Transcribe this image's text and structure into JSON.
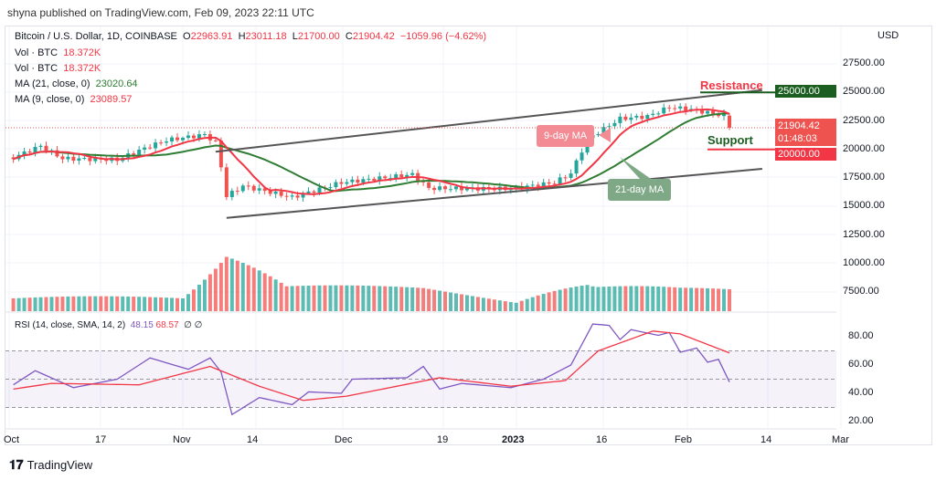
{
  "header": {
    "published": "shyna published on TradingView.com, Feb 09, 2023 22:11 UTC"
  },
  "legend": {
    "symbol": "Bitcoin / U.S. Dollar, 1D, COINBASE",
    "o_label": "O",
    "o": "22963.91",
    "h_label": "H",
    "h": "23011.18",
    "l_label": "L",
    "l": "21700.00",
    "c_label": "C",
    "c": "21904.42",
    "change": "−1059.96 (−4.62%)",
    "vol1_label": "Vol · BTC",
    "vol1": "18.372K",
    "vol2_label": "Vol · BTC",
    "vol2": "18.372K",
    "ma21_label": "MA (21, close, 0)",
    "ma21": "23020.64",
    "ma9_label": "MA (9, close, 0)",
    "ma9": "23089.57",
    "rsi_label": "RSI (14, close, SMA, 14, 2)",
    "rsi": "48.15",
    "rsi_sma": "68.57",
    "rsi_extra": "∅ ∅"
  },
  "price_axis": {
    "currency": "USD",
    "ticks": [
      "27500.00",
      "25000.00",
      "22500.00",
      "20000.00",
      "17500.00",
      "15000.00",
      "12500.00",
      "10000.00",
      "7500.00"
    ]
  },
  "tags": {
    "resistance": "25000.00",
    "last_price": "21904.42",
    "countdown": "01:48:03",
    "support": "20000.00"
  },
  "annotations": {
    "resistance": "Resistance",
    "support": "Support",
    "ma9": "9-day MA",
    "ma21": "21-day MA"
  },
  "rsi_axis": {
    "ticks": [
      "80.00",
      "60.00",
      "40.00",
      "20.00"
    ]
  },
  "time_axis": {
    "ticks": [
      "Oct",
      "17",
      "Nov",
      "14",
      "Dec",
      "19",
      "2023",
      "16",
      "Feb",
      "14",
      "Mar"
    ]
  },
  "brand": "TradingView",
  "colors": {
    "up": "#26a69a",
    "down": "#ef5350",
    "ma9": "#f23645",
    "ma21": "#2e7d32",
    "rsi": "#7e57c2",
    "rsi_sma": "#f23645",
    "resistance": "#1b5e20",
    "support": "#f23645"
  },
  "chart_data": {
    "type": "candlestick",
    "symbol": "BTCUSD",
    "interval": "1D",
    "ylim": [
      7500,
      27500
    ],
    "close_points": [
      [
        "2022-10-01",
        19300
      ],
      [
        "2022-10-06",
        20300
      ],
      [
        "2022-10-10",
        19200
      ],
      [
        "2022-10-20",
        19100
      ],
      [
        "2022-10-25",
        20100
      ],
      [
        "2022-10-29",
        20800
      ],
      [
        "2022-11-05",
        21300
      ],
      [
        "2022-11-07",
        20600
      ],
      [
        "2022-11-08",
        18500
      ],
      [
        "2022-11-09",
        15900
      ],
      [
        "2022-11-12",
        16800
      ],
      [
        "2022-11-21",
        15800
      ],
      [
        "2022-11-30",
        17100
      ],
      [
        "2022-12-13",
        17800
      ],
      [
        "2022-12-16",
        16600
      ],
      [
        "2022-12-31",
        16550
      ],
      [
        "2023-01-08",
        17100
      ],
      [
        "2023-01-11",
        17900
      ],
      [
        "2023-01-14",
        20900
      ],
      [
        "2023-01-20",
        22700
      ],
      [
        "2023-01-25",
        22900
      ],
      [
        "2023-01-29",
        23700
      ],
      [
        "2023-02-02",
        23500
      ],
      [
        "2023-02-08",
        22960
      ],
      [
        "2023-02-09",
        21904
      ]
    ],
    "volume_points_k": [
      [
        "2022-10-01",
        10
      ],
      [
        "2022-11-01",
        18
      ],
      [
        "2022-11-09",
        60
      ],
      [
        "2022-11-20",
        22
      ],
      [
        "2022-12-15",
        18
      ],
      [
        "2023-01-01",
        8
      ],
      [
        "2023-01-14",
        35
      ],
      [
        "2023-01-31",
        22
      ],
      [
        "2023-02-09",
        18
      ]
    ],
    "rsi_points": [
      [
        "2022-10-01",
        46
      ],
      [
        "2022-10-05",
        56
      ],
      [
        "2022-10-12",
        44
      ],
      [
        "2022-10-20",
        50
      ],
      [
        "2022-10-26",
        65
      ],
      [
        "2022-11-02",
        57
      ],
      [
        "2022-11-06",
        65
      ],
      [
        "2022-11-08",
        55
      ],
      [
        "2022-11-10",
        25
      ],
      [
        "2022-11-15",
        37
      ],
      [
        "2022-11-21",
        32
      ],
      [
        "2022-11-24",
        41
      ],
      [
        "2022-11-30",
        40
      ],
      [
        "2022-12-02",
        50
      ],
      [
        "2022-12-12",
        51
      ],
      [
        "2022-12-15",
        59
      ],
      [
        "2022-12-18",
        43
      ],
      [
        "2022-12-22",
        47
      ],
      [
        "2022-12-31",
        44
      ],
      [
        "2023-01-06",
        50
      ],
      [
        "2023-01-11",
        60
      ],
      [
        "2023-01-15",
        89
      ],
      [
        "2023-01-18",
        88
      ],
      [
        "2023-01-20",
        78
      ],
      [
        "2023-01-22",
        85
      ],
      [
        "2023-01-27",
        81
      ],
      [
        "2023-01-29",
        83
      ],
      [
        "2023-01-31",
        69
      ],
      [
        "2023-02-03",
        72
      ],
      [
        "2023-02-05",
        62
      ],
      [
        "2023-02-07",
        64
      ],
      [
        "2023-02-09",
        48
      ]
    ],
    "rsi_sma_points": [
      [
        "2022-10-01",
        43
      ],
      [
        "2022-10-08",
        47
      ],
      [
        "2022-10-24",
        46
      ],
      [
        "2022-11-06",
        59
      ],
      [
        "2022-11-15",
        45
      ],
      [
        "2022-11-23",
        35
      ],
      [
        "2022-12-01",
        38
      ],
      [
        "2022-12-18",
        51
      ],
      [
        "2022-12-31",
        45
      ],
      [
        "2023-01-10",
        49
      ],
      [
        "2023-01-16",
        70
      ],
      [
        "2023-01-26",
        84
      ],
      [
        "2023-01-31",
        82
      ],
      [
        "2023-02-09",
        68.57
      ]
    ],
    "rsi_bands": [
      30,
      50,
      70
    ],
    "channel": {
      "upper": [
        [
          "2022-11-07",
          19800
        ],
        [
          "2023-02-15",
          25200
        ]
      ],
      "lower": [
        [
          "2022-11-09",
          14000
        ],
        [
          "2023-02-15",
          18300
        ]
      ]
    }
  }
}
